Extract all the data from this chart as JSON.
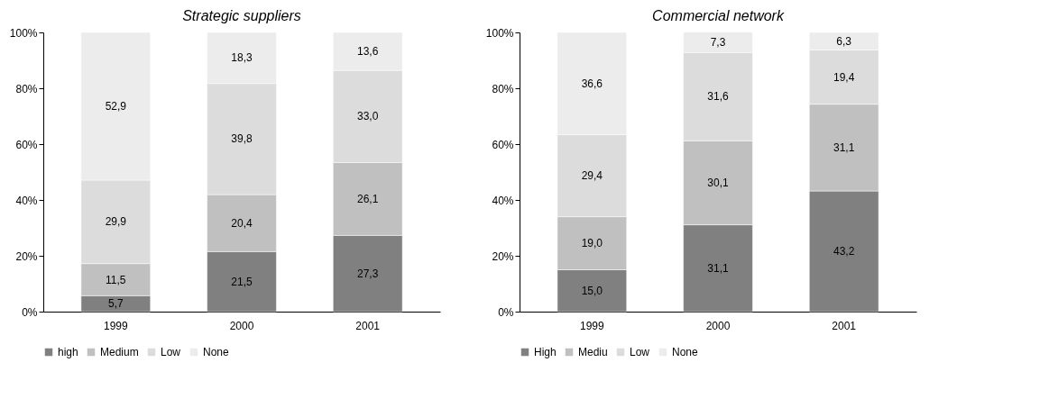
{
  "chart_data": [
    {
      "type": "bar",
      "title": "Strategic suppliers",
      "categories": [
        "1999",
        "2000",
        "2001"
      ],
      "stacked": true,
      "ylim": [
        0,
        100
      ],
      "yticks": [
        {
          "value": 0,
          "label": "0%"
        },
        {
          "value": 20,
          "label": "20%"
        },
        {
          "value": 40,
          "label": "40%"
        },
        {
          "value": 60,
          "label": "60%"
        },
        {
          "value": 80,
          "label": "80%"
        },
        {
          "value": 100,
          "label": "100%"
        }
      ],
      "grid": false,
      "legend": "bottom",
      "series": [
        {
          "name": "high",
          "color": "#808080",
          "values": [
            5.7,
            21.5,
            27.3
          ],
          "value_labels": [
            "5,7",
            "21,5",
            "27,3"
          ]
        },
        {
          "name": "Medium",
          "color": "#c0c0c0",
          "values": [
            11.5,
            20.4,
            26.1
          ],
          "value_labels": [
            "11,5",
            "20,4",
            "26,1"
          ]
        },
        {
          "name": "Low",
          "color": "#dcdcdc",
          "values": [
            29.9,
            39.8,
            33.0
          ],
          "value_labels": [
            "29,9",
            "39,8",
            "33,0"
          ]
        },
        {
          "name": "None",
          "color": "#ececec",
          "values": [
            52.9,
            18.3,
            13.6
          ],
          "value_labels": [
            "52,9",
            "18,3",
            "13,6"
          ]
        }
      ]
    },
    {
      "type": "bar",
      "title": "Commercial network",
      "categories": [
        "1999",
        "2000",
        "2001"
      ],
      "stacked": true,
      "ylim": [
        0,
        100
      ],
      "yticks": [
        {
          "value": 0,
          "label": "0%"
        },
        {
          "value": 20,
          "label": "20%"
        },
        {
          "value": 40,
          "label": "40%"
        },
        {
          "value": 60,
          "label": "60%"
        },
        {
          "value": 80,
          "label": "80%"
        },
        {
          "value": 100,
          "label": "100%"
        }
      ],
      "grid": false,
      "legend": "bottom",
      "series": [
        {
          "name": "High",
          "color": "#808080",
          "values": [
            15.0,
            31.1,
            43.2
          ],
          "value_labels": [
            "15,0",
            "31,1",
            "43,2"
          ]
        },
        {
          "name": "Mediu",
          "color": "#c0c0c0",
          "values": [
            19.0,
            30.1,
            31.1
          ],
          "value_labels": [
            "19,0",
            "30,1",
            "31,1"
          ]
        },
        {
          "name": "Low",
          "color": "#dcdcdc",
          "values": [
            29.4,
            31.6,
            19.4
          ],
          "value_labels": [
            "29,4",
            "31,6",
            "19,4"
          ]
        },
        {
          "name": "None",
          "color": "#ececec",
          "values": [
            36.6,
            7.3,
            6.3
          ],
          "value_labels": [
            "36,6",
            "7,3",
            "6,3"
          ]
        }
      ]
    }
  ]
}
